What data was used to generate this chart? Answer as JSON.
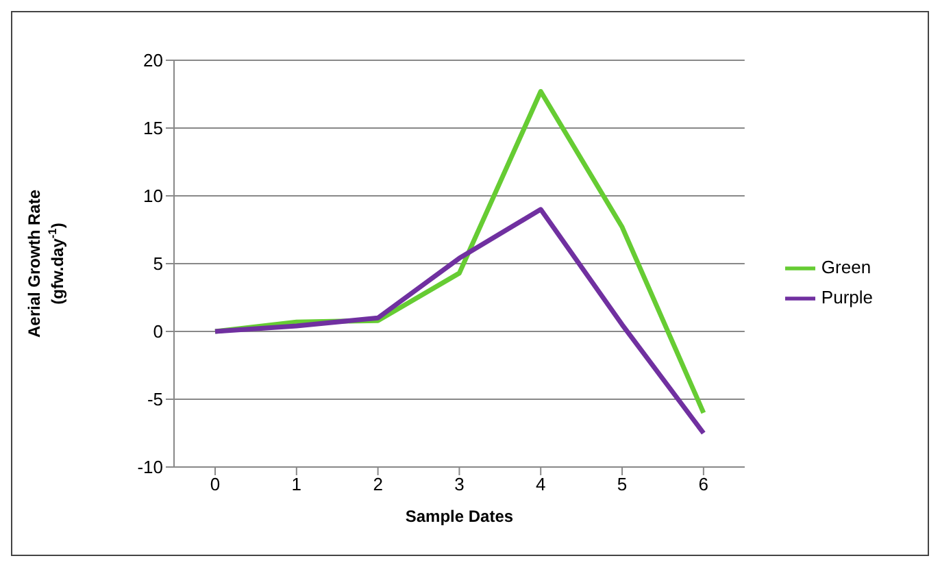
{
  "chart_data": {
    "type": "line",
    "xlabel": "Sample Dates",
    "ylabel": "Aerial Growth Rate\n(gfw.day$^{-1}$)",
    "categories": [
      "0",
      "1",
      "2",
      "3",
      "4",
      "5",
      "6"
    ],
    "series": [
      {
        "name": "Green",
        "color": "#66cc33",
        "values": [
          0,
          0.7,
          0.8,
          4.3,
          17.7,
          7.7,
          -6
        ]
      },
      {
        "name": "Purple",
        "color": "#7030a0",
        "values": [
          0,
          0.4,
          1.0,
          5.4,
          9.0,
          0.5,
          -7.5
        ]
      }
    ],
    "ylim": [
      -10,
      20
    ],
    "yticks": [
      -10,
      -5,
      0,
      5,
      10,
      15,
      20
    ],
    "grid": "y",
    "legend": "right",
    "marker": "none",
    "line_style": "solid"
  }
}
